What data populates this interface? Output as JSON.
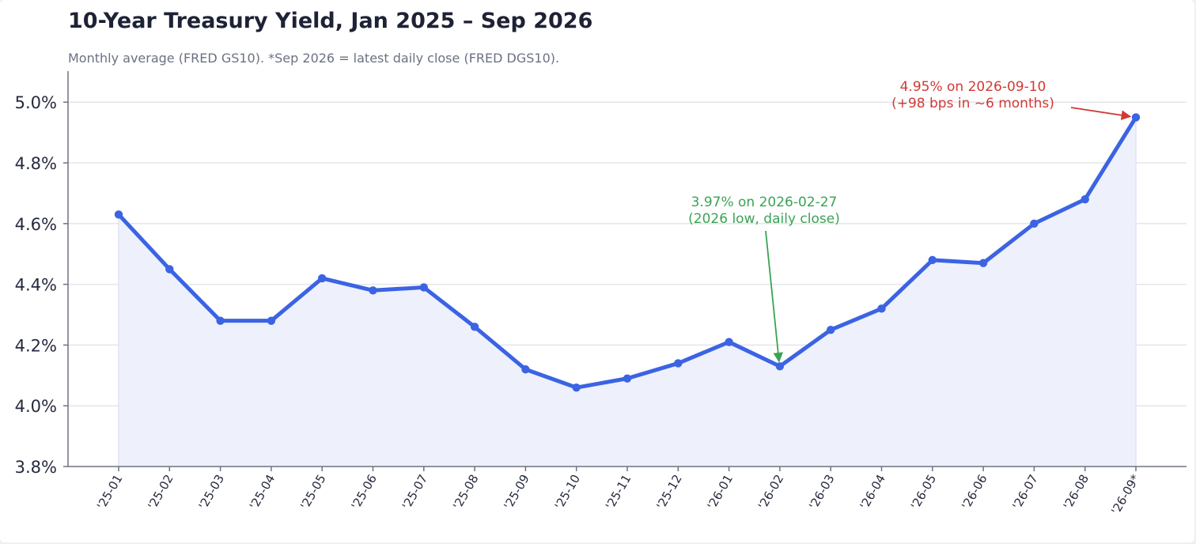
{
  "chart_data": {
    "type": "line",
    "title": "10-Year Treasury Yield, Jan 2025 – Sep 2026",
    "subtitle": "Monthly average (FRED GS10). *Sep 2026 = latest daily close (FRED DGS10).",
    "xlabel": "",
    "ylabel": "",
    "categories": [
      "'25-01",
      "'25-02",
      "'25-03",
      "'25-04",
      "'25-05",
      "'25-06",
      "'25-07",
      "'25-08",
      "'25-09",
      "'25-10",
      "'25-11",
      "'25-12",
      "'26-01",
      "'26-02",
      "'26-03",
      "'26-04",
      "'26-05",
      "'26-06",
      "'26-07",
      "'26-08",
      "'26-09*"
    ],
    "series": [
      {
        "values": [
          4.63,
          4.45,
          4.28,
          4.28,
          4.42,
          4.38,
          4.39,
          4.26,
          4.12,
          4.06,
          4.09,
          4.14,
          4.21,
          4.13,
          4.25,
          4.32,
          4.48,
          4.47,
          4.6,
          4.68,
          4.95
        ]
      }
    ],
    "ylim": [
      3.8,
      5.1
    ],
    "yticks": [
      3.8,
      4.0,
      4.2,
      4.4,
      4.6,
      4.8,
      5.0
    ],
    "ytick_labels": [
      "3.8%",
      "4.0%",
      "4.2%",
      "4.4%",
      "4.6%",
      "4.8%",
      "5.0%"
    ],
    "grid": "horizontal",
    "colors": {
      "line": "#3b63e3",
      "fill": "#eef1fc",
      "annotation_high": "#d13a34",
      "annotation_low": "#3aa355",
      "grid": "#e3e5ec"
    },
    "annotations": [
      {
        "id": "high",
        "target_index": 20,
        "target_value": 4.95,
        "lines": [
          "4.95% on 2026-09-10",
          "(+98 bps in ~6 months)"
        ]
      },
      {
        "id": "low",
        "target_index": 13,
        "target_value": 4.13,
        "lines": [
          "3.97% on 2026-02-27",
          "(2026 low, daily close)"
        ]
      }
    ]
  }
}
